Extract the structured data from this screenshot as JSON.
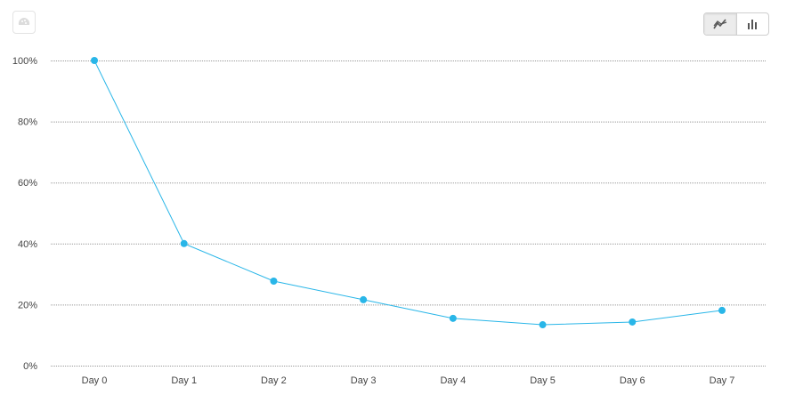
{
  "icons": {
    "corner": "brain-icon",
    "line_toggle": "line-chart-icon",
    "bar_toggle": "bar-chart-icon"
  },
  "colors": {
    "series": "#29b6e8",
    "grid": "#999999"
  },
  "chart_data": {
    "type": "line",
    "categories": [
      "Day 0",
      "Day 1",
      "Day 2",
      "Day 3",
      "Day 4",
      "Day 5",
      "Day 6",
      "Day 7"
    ],
    "series": [
      {
        "values": [
          100,
          40,
          27.7,
          21.6,
          15.5,
          13.4,
          14.3,
          18.1
        ]
      }
    ],
    "yticks": [
      "0%",
      "20%",
      "40%",
      "60%",
      "80%",
      "100%"
    ],
    "ylim": [
      0,
      100
    ],
    "grid": true,
    "xlabel": "",
    "ylabel": "",
    "title": ""
  }
}
